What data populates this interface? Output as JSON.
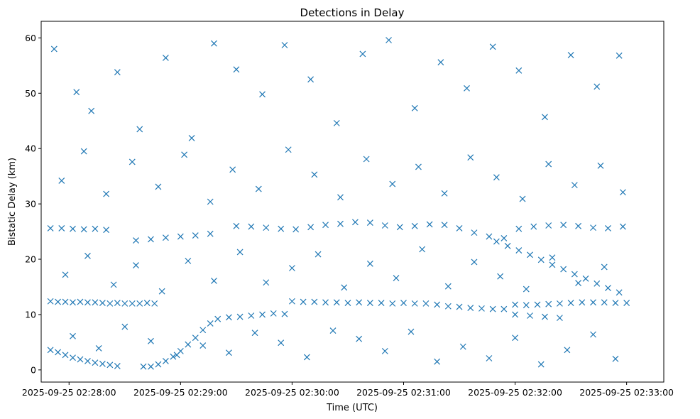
{
  "chart_data": {
    "type": "scatter",
    "title": "Detections in Delay",
    "xlabel": "Time (UTC)",
    "ylabel": "Bistatic Delay (km)",
    "marker": "x",
    "marker_color": "#1f77b4",
    "x_start": "2025-09-25 02:27:50",
    "x_end": "2025-09-25 02:33:00",
    "xlim": [
      "2025-09-25 02:27:45",
      "2025-09-25 02:33:20"
    ],
    "ylim": [
      -2.2,
      63
    ],
    "grid": false,
    "x_ticks": [
      {
        "label": "2025-09-25 02:28:00"
      },
      {
        "label": "2025-09-25 02:29:00"
      },
      {
        "label": "2025-09-25 02:30:00"
      },
      {
        "label": "2025-09-25 02:31:00"
      },
      {
        "label": "2025-09-25 02:32:00"
      },
      {
        "label": "2025-09-25 02:33:00"
      }
    ],
    "y_ticks": [
      0,
      10,
      20,
      30,
      40,
      50,
      60
    ],
    "series": [
      {
        "points": [
          [
            "2025-09-25 02:27:50",
            12.4
          ],
          [
            "2025-09-25 02:27:54",
            12.3
          ],
          [
            "2025-09-25 02:27:58",
            12.3
          ],
          [
            "2025-09-25 02:28:02",
            12.2
          ],
          [
            "2025-09-25 02:28:06",
            12.3
          ],
          [
            "2025-09-25 02:28:10",
            12.2
          ],
          [
            "2025-09-25 02:28:14",
            12.2
          ],
          [
            "2025-09-25 02:28:18",
            12.1
          ],
          [
            "2025-09-25 02:28:22",
            12.0
          ],
          [
            "2025-09-25 02:28:26",
            12.1
          ],
          [
            "2025-09-25 02:28:30",
            12.0
          ],
          [
            "2025-09-25 02:28:34",
            12.0
          ],
          [
            "2025-09-25 02:28:38",
            12.0
          ],
          [
            "2025-09-25 02:28:42",
            12.1
          ],
          [
            "2025-09-25 02:28:46",
            12.0
          ],
          [
            "2025-09-25 02:30:00",
            12.4
          ],
          [
            "2025-09-25 02:30:06",
            12.3
          ],
          [
            "2025-09-25 02:30:12",
            12.3
          ],
          [
            "2025-09-25 02:30:18",
            12.2
          ],
          [
            "2025-09-25 02:30:24",
            12.2
          ],
          [
            "2025-09-25 02:30:30",
            12.1
          ],
          [
            "2025-09-25 02:30:36",
            12.2
          ],
          [
            "2025-09-25 02:30:42",
            12.1
          ],
          [
            "2025-09-25 02:30:48",
            12.1
          ],
          [
            "2025-09-25 02:30:54",
            12.0
          ],
          [
            "2025-09-25 02:31:00",
            12.1
          ],
          [
            "2025-09-25 02:31:06",
            12.0
          ],
          [
            "2025-09-25 02:31:12",
            12.0
          ],
          [
            "2025-09-25 02:31:18",
            11.8
          ],
          [
            "2025-09-25 02:31:24",
            11.5
          ],
          [
            "2025-09-25 02:31:30",
            11.4
          ],
          [
            "2025-09-25 02:31:36",
            11.2
          ],
          [
            "2025-09-25 02:31:42",
            11.1
          ],
          [
            "2025-09-25 02:31:48",
            11.0
          ],
          [
            "2025-09-25 02:31:54",
            11.0
          ],
          [
            "2025-09-25 02:32:00",
            11.8
          ],
          [
            "2025-09-25 02:32:06",
            11.7
          ],
          [
            "2025-09-25 02:32:12",
            11.8
          ],
          [
            "2025-09-25 02:32:18",
            11.9
          ],
          [
            "2025-09-25 02:32:24",
            12.0
          ],
          [
            "2025-09-25 02:32:30",
            12.1
          ],
          [
            "2025-09-25 02:32:36",
            12.2
          ],
          [
            "2025-09-25 02:32:42",
            12.2
          ],
          [
            "2025-09-25 02:32:48",
            12.2
          ],
          [
            "2025-09-25 02:32:54",
            12.1
          ],
          [
            "2025-09-25 02:33:00",
            12.1
          ],
          [
            "2025-09-25 02:27:50",
            25.6
          ],
          [
            "2025-09-25 02:27:56",
            25.6
          ],
          [
            "2025-09-25 02:28:02",
            25.5
          ],
          [
            "2025-09-25 02:28:08",
            25.4
          ],
          [
            "2025-09-25 02:28:14",
            25.5
          ],
          [
            "2025-09-25 02:28:20",
            25.3
          ],
          [
            "2025-09-25 02:28:36",
            23.4
          ],
          [
            "2025-09-25 02:28:44",
            23.6
          ],
          [
            "2025-09-25 02:28:52",
            23.9
          ],
          [
            "2025-09-25 02:29:00",
            24.1
          ],
          [
            "2025-09-25 02:29:08",
            24.3
          ],
          [
            "2025-09-25 02:29:16",
            24.6
          ],
          [
            "2025-09-25 02:29:30",
            26.0
          ],
          [
            "2025-09-25 02:29:38",
            25.9
          ],
          [
            "2025-09-25 02:29:46",
            25.7
          ],
          [
            "2025-09-25 02:29:54",
            25.5
          ],
          [
            "2025-09-25 02:30:02",
            25.4
          ],
          [
            "2025-09-25 02:30:10",
            25.8
          ],
          [
            "2025-09-25 02:30:18",
            26.2
          ],
          [
            "2025-09-25 02:30:26",
            26.4
          ],
          [
            "2025-09-25 02:30:34",
            26.7
          ],
          [
            "2025-09-25 02:30:42",
            26.6
          ],
          [
            "2025-09-25 02:30:50",
            26.1
          ],
          [
            "2025-09-25 02:30:58",
            25.8
          ],
          [
            "2025-09-25 02:31:06",
            26.0
          ],
          [
            "2025-09-25 02:31:14",
            26.3
          ],
          [
            "2025-09-25 02:31:22",
            26.2
          ],
          [
            "2025-09-25 02:31:30",
            25.6
          ],
          [
            "2025-09-25 02:31:38",
            24.8
          ],
          [
            "2025-09-25 02:31:46",
            24.1
          ],
          [
            "2025-09-25 02:31:54",
            23.8
          ],
          [
            "2025-09-25 02:32:02",
            25.5
          ],
          [
            "2025-09-25 02:32:10",
            25.9
          ],
          [
            "2025-09-25 02:32:18",
            26.1
          ],
          [
            "2025-09-25 02:32:26",
            26.2
          ],
          [
            "2025-09-25 02:32:34",
            26.0
          ],
          [
            "2025-09-25 02:32:42",
            25.7
          ],
          [
            "2025-09-25 02:32:50",
            25.6
          ],
          [
            "2025-09-25 02:32:58",
            25.9
          ],
          [
            "2025-09-25 02:27:50",
            3.6
          ],
          [
            "2025-09-25 02:27:54",
            3.2
          ],
          [
            "2025-09-25 02:27:58",
            2.7
          ],
          [
            "2025-09-25 02:28:02",
            2.2
          ],
          [
            "2025-09-25 02:28:06",
            1.9
          ],
          [
            "2025-09-25 02:28:10",
            1.6
          ],
          [
            "2025-09-25 02:28:14",
            1.3
          ],
          [
            "2025-09-25 02:28:18",
            1.1
          ],
          [
            "2025-09-25 02:28:22",
            0.9
          ],
          [
            "2025-09-25 02:28:26",
            0.7
          ],
          [
            "2025-09-25 02:28:40",
            0.6
          ],
          [
            "2025-09-25 02:28:44",
            0.6
          ],
          [
            "2025-09-25 02:28:48",
            1.0
          ],
          [
            "2025-09-25 02:28:52",
            1.6
          ],
          [
            "2025-09-25 02:28:56",
            2.4
          ],
          [
            "2025-09-25 02:29:00",
            3.4
          ],
          [
            "2025-09-25 02:29:04",
            4.6
          ],
          [
            "2025-09-25 02:29:08",
            5.8
          ],
          [
            "2025-09-25 02:29:12",
            7.2
          ],
          [
            "2025-09-25 02:29:16",
            8.4
          ],
          [
            "2025-09-25 02:29:20",
            9.2
          ],
          [
            "2025-09-25 02:29:26",
            9.5
          ],
          [
            "2025-09-25 02:29:32",
            9.6
          ],
          [
            "2025-09-25 02:29:38",
            9.8
          ],
          [
            "2025-09-25 02:29:44",
            10.0
          ],
          [
            "2025-09-25 02:29:50",
            10.2
          ],
          [
            "2025-09-25 02:29:56",
            10.1
          ],
          [
            "2025-09-25 02:31:50",
            23.2
          ],
          [
            "2025-09-25 02:31:56",
            22.4
          ],
          [
            "2025-09-25 02:32:02",
            21.6
          ],
          [
            "2025-09-25 02:32:08",
            20.8
          ],
          [
            "2025-09-25 02:32:14",
            19.9
          ],
          [
            "2025-09-25 02:32:20",
            19.0
          ],
          [
            "2025-09-25 02:32:26",
            18.2
          ],
          [
            "2025-09-25 02:32:32",
            17.3
          ],
          [
            "2025-09-25 02:32:38",
            16.5
          ],
          [
            "2025-09-25 02:32:44",
            15.6
          ],
          [
            "2025-09-25 02:32:50",
            14.8
          ],
          [
            "2025-09-25 02:32:56",
            14.0
          ],
          [
            "2025-09-25 02:32:00",
            10.0
          ],
          [
            "2025-09-25 02:32:08",
            9.8
          ],
          [
            "2025-09-25 02:32:16",
            9.6
          ],
          [
            "2025-09-25 02:32:24",
            9.4
          ],
          [
            "2025-09-25 02:27:52",
            58.0
          ],
          [
            "2025-09-25 02:28:04",
            50.2
          ],
          [
            "2025-09-25 02:28:12",
            46.8
          ],
          [
            "2025-09-25 02:28:26",
            53.8
          ],
          [
            "2025-09-25 02:28:38",
            43.5
          ],
          [
            "2025-09-25 02:28:52",
            56.4
          ],
          [
            "2025-09-25 02:29:06",
            41.9
          ],
          [
            "2025-09-25 02:29:18",
            59.0
          ],
          [
            "2025-09-25 02:29:30",
            54.3
          ],
          [
            "2025-09-25 02:29:44",
            49.8
          ],
          [
            "2025-09-25 02:29:56",
            58.7
          ],
          [
            "2025-09-25 02:30:10",
            52.5
          ],
          [
            "2025-09-25 02:30:24",
            44.6
          ],
          [
            "2025-09-25 02:30:38",
            57.1
          ],
          [
            "2025-09-25 02:30:52",
            59.6
          ],
          [
            "2025-09-25 02:31:06",
            47.3
          ],
          [
            "2025-09-25 02:31:20",
            55.6
          ],
          [
            "2025-09-25 02:31:34",
            50.9
          ],
          [
            "2025-09-25 02:31:48",
            58.4
          ],
          [
            "2025-09-25 02:32:02",
            54.1
          ],
          [
            "2025-09-25 02:32:16",
            45.7
          ],
          [
            "2025-09-25 02:32:30",
            56.9
          ],
          [
            "2025-09-25 02:32:44",
            51.2
          ],
          [
            "2025-09-25 02:32:56",
            56.8
          ],
          [
            "2025-09-25 02:27:56",
            34.2
          ],
          [
            "2025-09-25 02:28:08",
            39.5
          ],
          [
            "2025-09-25 02:28:20",
            31.8
          ],
          [
            "2025-09-25 02:28:34",
            37.6
          ],
          [
            "2025-09-25 02:28:48",
            33.1
          ],
          [
            "2025-09-25 02:29:02",
            38.9
          ],
          [
            "2025-09-25 02:29:16",
            30.4
          ],
          [
            "2025-09-25 02:29:28",
            36.2
          ],
          [
            "2025-09-25 02:29:42",
            32.7
          ],
          [
            "2025-09-25 02:29:58",
            39.8
          ],
          [
            "2025-09-25 02:30:12",
            35.3
          ],
          [
            "2025-09-25 02:30:26",
            31.2
          ],
          [
            "2025-09-25 02:30:40",
            38.1
          ],
          [
            "2025-09-25 02:30:54",
            33.6
          ],
          [
            "2025-09-25 02:31:08",
            36.7
          ],
          [
            "2025-09-25 02:31:22",
            31.9
          ],
          [
            "2025-09-25 02:31:36",
            38.4
          ],
          [
            "2025-09-25 02:31:50",
            34.8
          ],
          [
            "2025-09-25 02:32:04",
            30.9
          ],
          [
            "2025-09-25 02:32:18",
            37.2
          ],
          [
            "2025-09-25 02:32:32",
            33.4
          ],
          [
            "2025-09-25 02:32:46",
            36.9
          ],
          [
            "2025-09-25 02:32:58",
            32.1
          ],
          [
            "2025-09-25 02:27:58",
            17.2
          ],
          [
            "2025-09-25 02:28:10",
            20.6
          ],
          [
            "2025-09-25 02:28:24",
            15.4
          ],
          [
            "2025-09-25 02:28:36",
            18.9
          ],
          [
            "2025-09-25 02:28:50",
            14.2
          ],
          [
            "2025-09-25 02:29:04",
            19.7
          ],
          [
            "2025-09-25 02:29:18",
            16.1
          ],
          [
            "2025-09-25 02:29:32",
            21.3
          ],
          [
            "2025-09-25 02:29:46",
            15.8
          ],
          [
            "2025-09-25 02:30:00",
            18.4
          ],
          [
            "2025-09-25 02:30:14",
            20.9
          ],
          [
            "2025-09-25 02:30:28",
            14.9
          ],
          [
            "2025-09-25 02:30:42",
            19.2
          ],
          [
            "2025-09-25 02:30:56",
            16.6
          ],
          [
            "2025-09-25 02:31:10",
            21.8
          ],
          [
            "2025-09-25 02:31:24",
            15.1
          ],
          [
            "2025-09-25 02:31:38",
            19.5
          ],
          [
            "2025-09-25 02:31:52",
            16.9
          ],
          [
            "2025-09-25 02:32:06",
            14.6
          ],
          [
            "2025-09-25 02:32:20",
            20.3
          ],
          [
            "2025-09-25 02:32:34",
            15.7
          ],
          [
            "2025-09-25 02:32:48",
            18.6
          ],
          [
            "2025-09-25 02:28:02",
            6.1
          ],
          [
            "2025-09-25 02:28:16",
            3.9
          ],
          [
            "2025-09-25 02:28:30",
            7.8
          ],
          [
            "2025-09-25 02:28:44",
            5.2
          ],
          [
            "2025-09-25 02:28:58",
            2.7
          ],
          [
            "2025-09-25 02:29:12",
            4.4
          ],
          [
            "2025-09-25 02:29:26",
            3.1
          ],
          [
            "2025-09-25 02:29:40",
            6.7
          ],
          [
            "2025-09-25 02:29:54",
            4.9
          ],
          [
            "2025-09-25 02:30:08",
            2.3
          ],
          [
            "2025-09-25 02:30:22",
            7.1
          ],
          [
            "2025-09-25 02:30:36",
            5.6
          ],
          [
            "2025-09-25 02:30:50",
            3.4
          ],
          [
            "2025-09-25 02:31:04",
            6.9
          ],
          [
            "2025-09-25 02:31:18",
            1.5
          ],
          [
            "2025-09-25 02:31:32",
            4.2
          ],
          [
            "2025-09-25 02:31:46",
            2.1
          ],
          [
            "2025-09-25 02:32:00",
            5.8
          ],
          [
            "2025-09-25 02:32:14",
            1.0
          ],
          [
            "2025-09-25 02:32:28",
            3.6
          ],
          [
            "2025-09-25 02:32:42",
            6.4
          ],
          [
            "2025-09-25 02:32:54",
            2.0
          ]
        ]
      }
    ]
  }
}
